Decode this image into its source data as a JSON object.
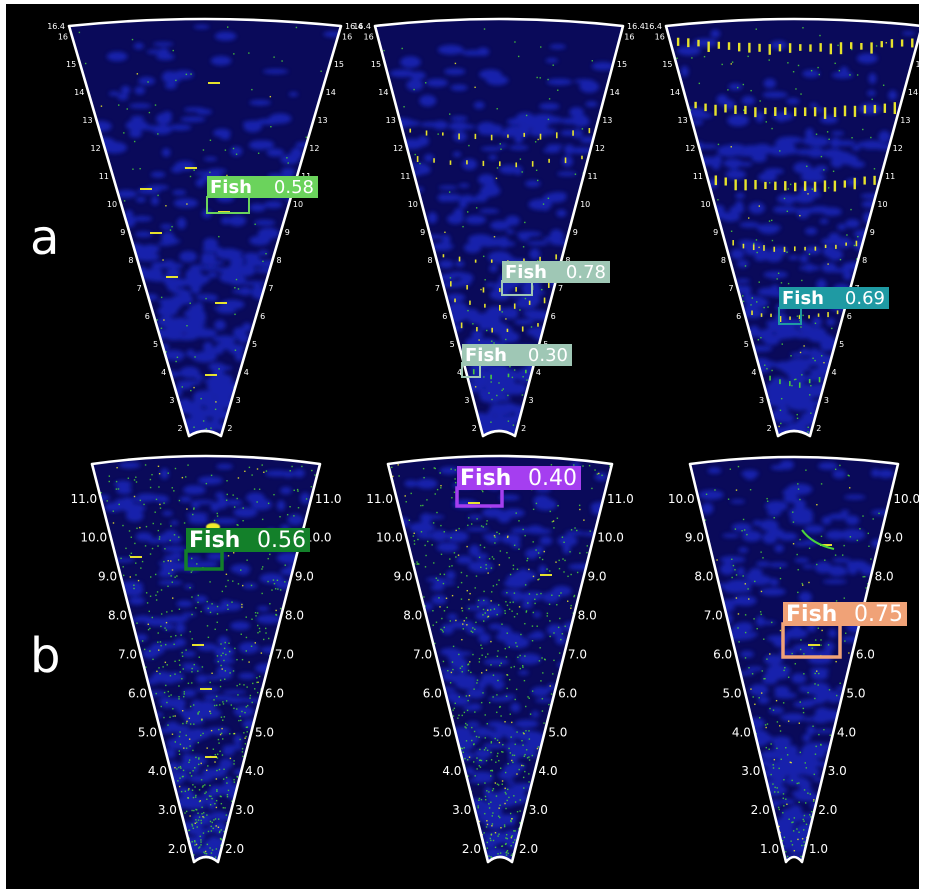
{
  "row_labels": {
    "a": "a",
    "b": "b"
  },
  "colors": {
    "background": "#000000",
    "fan_outline": "#ffffff",
    "water": "#0a0a5a",
    "echo_blue": "#1a2cc8",
    "echo_green": "#4cd43a",
    "echo_yellow": "#f2ee2a"
  },
  "panels": [
    {
      "id": "a1",
      "ticks_left": [
        "16.4",
        "16",
        "15",
        "14",
        "13",
        "12",
        "11",
        "10",
        "9",
        "8",
        "7",
        "6",
        "5",
        "4",
        "3",
        "2"
      ],
      "ticks_right": [
        "16.4",
        "16",
        "15",
        "14",
        "13",
        "12",
        "11",
        "10",
        "9",
        "8",
        "7",
        "6",
        "5",
        "4",
        "3",
        "2"
      ],
      "detections": [
        {
          "label": "Fish",
          "score": "0.58",
          "color": "#6bd35c",
          "text_color": "#ffffff"
        }
      ]
    },
    {
      "id": "a2",
      "ticks_left": [
        "16.4",
        "16",
        "15",
        "14",
        "13",
        "12",
        "11",
        "10",
        "9",
        "8",
        "7",
        "6",
        "5",
        "4",
        "3",
        "2"
      ],
      "ticks_right": [
        "16.4",
        "16",
        "15",
        "14",
        "13",
        "12",
        "11",
        "10",
        "9",
        "8",
        "7",
        "6",
        "5",
        "4",
        "3",
        "2"
      ],
      "detections": [
        {
          "label": "Fish",
          "score": "0.78",
          "color": "#9fc7b5",
          "text_color": "#ffffff"
        },
        {
          "label": "Fish",
          "score": "0.30",
          "color": "#9fc7b5",
          "text_color": "#ffffff"
        }
      ]
    },
    {
      "id": "a3",
      "ticks_left": [
        "16.4",
        "16",
        "15",
        "14",
        "13",
        "12",
        "11",
        "10",
        "9",
        "8",
        "7",
        "6",
        "5",
        "4",
        "3",
        "2"
      ],
      "ticks_right": [
        "16.4",
        "16",
        "15",
        "14",
        "13",
        "12",
        "11",
        "10",
        "9",
        "8",
        "7",
        "6",
        "5",
        "4",
        "3",
        "2"
      ],
      "detections": [
        {
          "label": "Fish",
          "score": "0.69",
          "color": "#1f9aa3",
          "text_color": "#ffffff"
        }
      ]
    },
    {
      "id": "b1",
      "ticks_left": [
        "11.0",
        "10.0",
        "9.0",
        "8.0",
        "7.0",
        "6.0",
        "5.0",
        "4.0",
        "3.0",
        "2.0"
      ],
      "ticks_right": [
        "11.0",
        "10.0",
        "9.0",
        "8.0",
        "7.0",
        "6.0",
        "5.0",
        "4.0",
        "3.0",
        "2.0"
      ],
      "detections": [
        {
          "label": "Fish",
          "score": "0.56",
          "color": "#13802a",
          "text_color": "#ffffff"
        }
      ]
    },
    {
      "id": "b2",
      "ticks_left": [
        "11.0",
        "10.0",
        "9.0",
        "8.0",
        "7.0",
        "6.0",
        "5.0",
        "4.0",
        "3.0",
        "2.0"
      ],
      "ticks_right": [
        "11.0",
        "10.0",
        "9.0",
        "8.0",
        "7.0",
        "6.0",
        "5.0",
        "4.0",
        "3.0",
        "2.0"
      ],
      "detections": [
        {
          "label": "Fish",
          "score": "0.40",
          "color": "#a53ef0",
          "text_color": "#ffffff"
        }
      ]
    },
    {
      "id": "b3",
      "ticks_left": [
        "10.0",
        "9.0",
        "8.0",
        "7.0",
        "6.0",
        "5.0",
        "4.0",
        "3.0",
        "2.0",
        "1.0"
      ],
      "ticks_right": [
        "10.0",
        "9.0",
        "8.0",
        "7.0",
        "6.0",
        "5.0",
        "4.0",
        "3.0",
        "2.0",
        "1.0"
      ],
      "detections": [
        {
          "label": "Fish",
          "score": "0.75",
          "color": "#f0a277",
          "text_color": "#ffffff"
        }
      ]
    }
  ]
}
